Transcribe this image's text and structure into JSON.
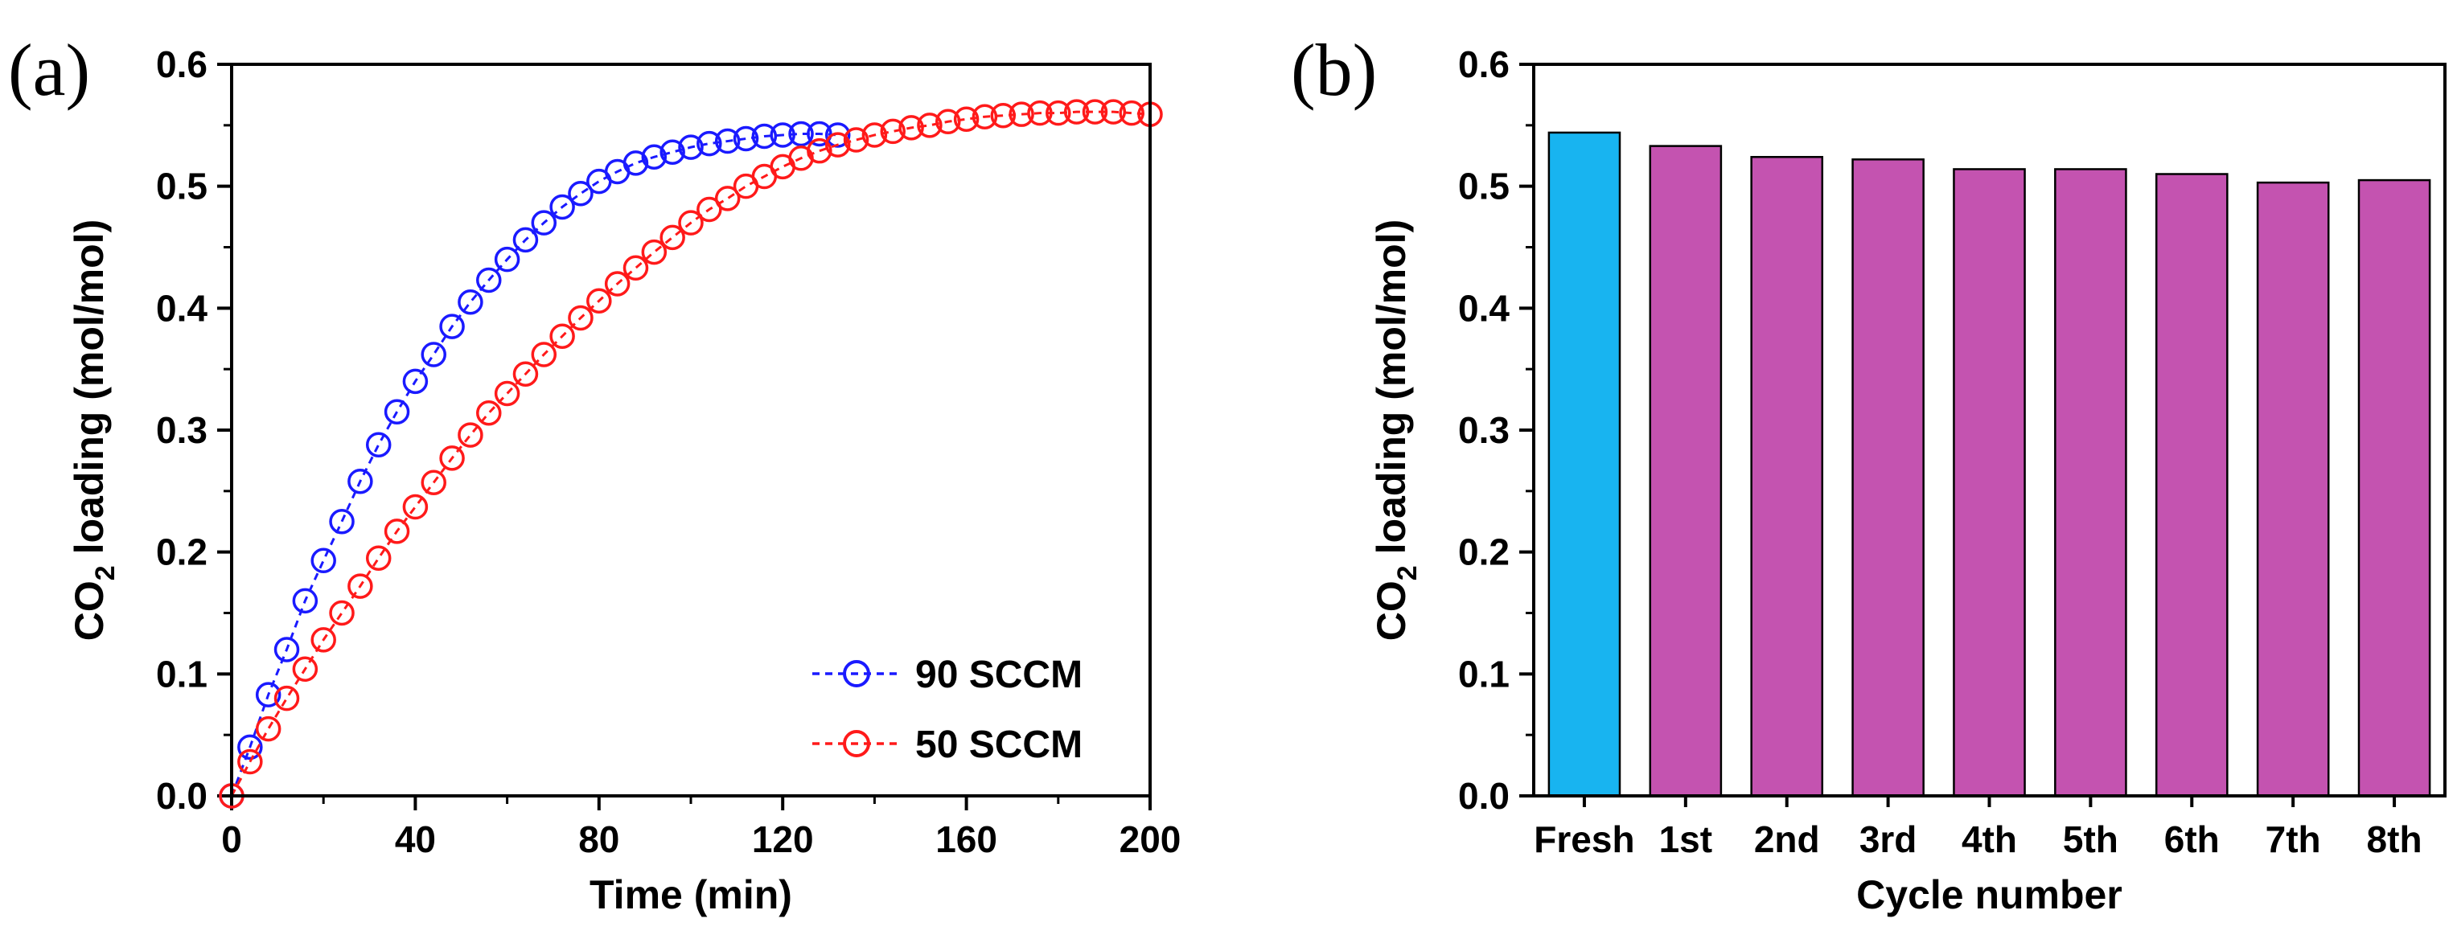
{
  "colors": {
    "series_blue": "#1a1aff",
    "series_red": "#ff1a1a",
    "bar_fresh": "#18b4f0",
    "bar_cycle": "#c453b0",
    "axis": "#000000"
  },
  "chart_data": [
    {
      "type": "scatter",
      "panel_label": "(a)",
      "xlabel": "Time (min)",
      "ylabel": {
        "prefix": "CO",
        "subscript": "2",
        "suffix": " loading (mol/mol)"
      },
      "xlim": [
        0,
        200
      ],
      "ylim": [
        0,
        0.6
      ],
      "xticks": [
        "0",
        "40",
        "80",
        "120",
        "160",
        "200"
      ],
      "yticks": [
        "0.0",
        "0.1",
        "0.2",
        "0.3",
        "0.4",
        "0.5",
        "0.6"
      ],
      "legend_position": "bottom-right",
      "series": [
        {
          "name": "90 SCCM",
          "color": "#1a1aff",
          "x": [
            0,
            4,
            8,
            12,
            16,
            20,
            24,
            28,
            32,
            36,
            40,
            44,
            48,
            52,
            56,
            60,
            64,
            68,
            72,
            76,
            80,
            84,
            88,
            92,
            96,
            100,
            104,
            108,
            112,
            116,
            120,
            124,
            128,
            132
          ],
          "y": [
            0.0,
            0.04,
            0.083,
            0.12,
            0.16,
            0.193,
            0.225,
            0.258,
            0.288,
            0.315,
            0.34,
            0.362,
            0.385,
            0.405,
            0.423,
            0.44,
            0.456,
            0.47,
            0.483,
            0.494,
            0.504,
            0.512,
            0.519,
            0.524,
            0.528,
            0.532,
            0.535,
            0.537,
            0.539,
            0.541,
            0.542,
            0.543,
            0.543,
            0.542
          ]
        },
        {
          "name": "50 SCCM",
          "color": "#ff1a1a",
          "x": [
            0,
            4,
            8,
            12,
            16,
            20,
            24,
            28,
            32,
            36,
            40,
            44,
            48,
            52,
            56,
            60,
            64,
            68,
            72,
            76,
            80,
            84,
            88,
            92,
            96,
            100,
            104,
            108,
            112,
            116,
            120,
            124,
            128,
            132,
            136,
            140,
            144,
            148,
            152,
            156,
            160,
            164,
            168,
            172,
            176,
            180,
            184,
            188,
            192,
            196,
            200
          ],
          "y": [
            0.0,
            0.028,
            0.055,
            0.08,
            0.104,
            0.128,
            0.15,
            0.172,
            0.195,
            0.217,
            0.237,
            0.257,
            0.277,
            0.296,
            0.314,
            0.33,
            0.346,
            0.362,
            0.377,
            0.392,
            0.406,
            0.42,
            0.433,
            0.446,
            0.458,
            0.47,
            0.481,
            0.49,
            0.5,
            0.508,
            0.516,
            0.523,
            0.529,
            0.534,
            0.538,
            0.542,
            0.545,
            0.548,
            0.55,
            0.553,
            0.555,
            0.557,
            0.558,
            0.559,
            0.56,
            0.56,
            0.561,
            0.561,
            0.561,
            0.56,
            0.559
          ]
        }
      ]
    },
    {
      "type": "bar",
      "panel_label": "(b)",
      "xlabel": "Cycle number",
      "ylabel": {
        "prefix": "CO",
        "subscript": "2",
        "suffix": " loading (mol/mol)"
      },
      "ylim": [
        0,
        0.6
      ],
      "yticks": [
        "0.0",
        "0.1",
        "0.2",
        "0.3",
        "0.4",
        "0.5",
        "0.6"
      ],
      "categories": [
        "Fresh",
        "1st",
        "2nd",
        "3rd",
        "4th",
        "5th",
        "6th",
        "7th",
        "8th"
      ],
      "values": [
        0.544,
        0.533,
        0.524,
        0.522,
        0.514,
        0.514,
        0.51,
        0.503,
        0.505
      ],
      "bar_colors": [
        "#18b4f0",
        "#c453b0",
        "#c453b0",
        "#c453b0",
        "#c453b0",
        "#c453b0",
        "#c453b0",
        "#c453b0",
        "#c453b0"
      ]
    }
  ]
}
